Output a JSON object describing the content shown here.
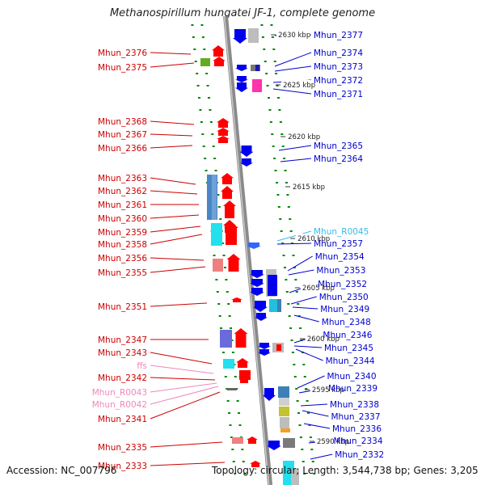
{
  "title": "Methanospirillum hungatei JF-1, complete genome",
  "footer": {
    "accession": "Accession: NC_007796",
    "summary": "Topology: circular; Length: 3,544,738 bp; Genes: 3,205"
  },
  "colors": {
    "left_label": "#cc0000",
    "right_label": "#0000cc",
    "rna_label_right": "#33bbee",
    "rna_label_left": "#ee88bb",
    "backbone": "#8a8a8a",
    "tick_green": "#008800",
    "gene_red": "#ff0000",
    "gene_blue": "#0000ee"
  },
  "scale_labels": [
    "2630 kbp",
    "2625 kbp",
    "2620 kbp",
    "2615 kbp",
    "2610 kbp",
    "2605 kbp",
    "2600 kbp",
    "2595 kbp",
    "2590 kbp"
  ],
  "left_labels": [
    "Mhun_2376",
    "Mhun_2375",
    "Mhun_2368",
    "Mhun_2367",
    "Mhun_2366",
    "Mhun_2363",
    "Mhun_2362",
    "Mhun_2361",
    "Mhun_2360",
    "Mhun_2359",
    "Mhun_2358",
    "Mhun_2356",
    "Mhun_2355",
    "Mhun_2351",
    "Mhun_2347",
    "Mhun_2343",
    "ffs",
    "Mhun_2342",
    "Mhun_R0043",
    "Mhun_R0042",
    "Mhun_2341",
    "Mhun_2335",
    "Mhun_2333"
  ],
  "right_labels": [
    "Mhun_2377",
    "Mhun_2374",
    "Mhun_2373",
    "Mhun_2372",
    "Mhun_2371",
    "Mhun_2365",
    "Mhun_2364",
    "Mhun_R0045",
    "Mhun_2357",
    "Mhun_2354",
    "Mhun_2353",
    "Mhun_2352",
    "Mhun_2350",
    "Mhun_2349",
    "Mhun_2348",
    "Mhun_2346",
    "Mhun_2345",
    "Mhun_2344",
    "Mhun_2340",
    "Mhun_2339",
    "Mhun_2338",
    "Mhun_2337",
    "Mhun_2336",
    "Mhun_2334",
    "Mhun_2332"
  ]
}
